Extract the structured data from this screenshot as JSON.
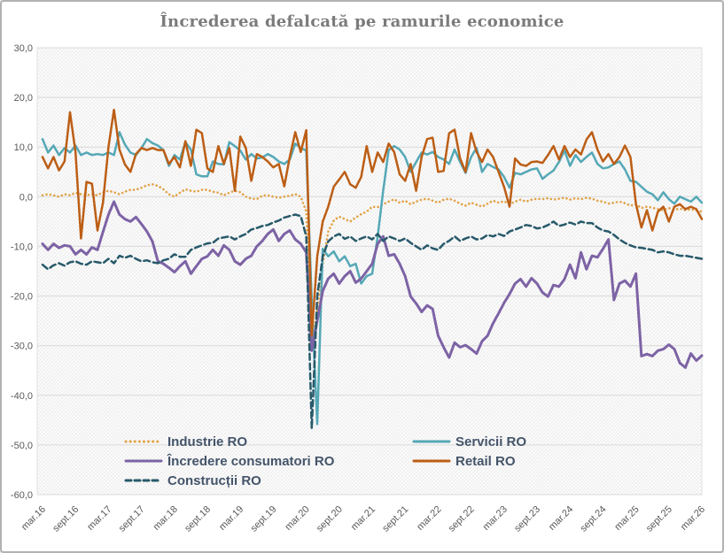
{
  "title": "Încrederea defalcată pe ramurile economice",
  "chart_data": {
    "type": "line",
    "title": "Încrederea defalcată pe ramurile economice",
    "x_unit": "month",
    "x_tick_labels": [
      "mar.16",
      "sept.16",
      "mar.17",
      "sept.17",
      "mar.18",
      "sept.18",
      "mar.19",
      "sept.19",
      "mar.20",
      "sept.20",
      "mar.21",
      "sept.21",
      "mar.22",
      "sept.22",
      "mar.23",
      "sept.23",
      "mar.24",
      "sept.24",
      "mar.25",
      "sept.25",
      "mar.26"
    ],
    "months_between_ticks": 6,
    "ylim": [
      -60,
      30
    ],
    "y_ticks": [
      30,
      20,
      10,
      0,
      -10,
      -20,
      -30,
      -40,
      -50,
      -60
    ],
    "y_tick_labels": [
      "30,0",
      "20,0",
      "10,0",
      "0,0",
      "-10,0",
      "-20,0",
      "-30,0",
      "-40,0",
      "-50,0",
      "-60,0"
    ],
    "grid": "horizontal",
    "plot_background": "diagonal-hatch",
    "legend_position": "bottom-inside",
    "legend_rows": [
      [
        "Industrie RO",
        "Servicii RO"
      ],
      [
        "Încredere consumatori RO",
        "Retail RO"
      ],
      [
        "Construcții RO"
      ]
    ],
    "series": [
      {
        "name": "Industrie RO",
        "color": "#E2A348",
        "style": "dotted",
        "values": [
          0.3,
          0.5,
          0.3,
          0.0,
          0.5,
          0.3,
          0.8,
          0.5,
          0.3,
          0.5,
          0.3,
          0.9,
          1.2,
          0.9,
          0.5,
          1.0,
          1.4,
          1.4,
          1.8,
          2.3,
          2.5,
          2.2,
          1.5,
          0.5,
          0.0,
          0.8,
          1.5,
          1.2,
          1.0,
          1.4,
          1.4,
          1.0,
          0.8,
          0.3,
          0.8,
          1.2,
          0.9,
          0.0,
          -0.4,
          -0.5,
          0.2,
          0.3,
          0.0,
          -0.2,
          0.0,
          0.2,
          0.5,
          0.0,
          -3.0,
          -30.0,
          -23.0,
          -13.5,
          -7.0,
          -4.8,
          -4.0,
          -4.5,
          -5.0,
          -4.2,
          -3.5,
          -3.0,
          -2.0,
          -2.1,
          -1.5,
          -1.0,
          -0.5,
          -1.2,
          -0.8,
          -1.5,
          -1.0,
          -0.6,
          -0.4,
          -0.8,
          -1.2,
          -0.6,
          -0.4,
          -0.8,
          -1.4,
          -1.8,
          -1.2,
          -1.6,
          -2.0,
          -1.4,
          -0.8,
          -1.2,
          -0.9,
          -1.5,
          -1.0,
          -0.6,
          -1.0,
          -0.6,
          -0.4,
          -0.5,
          -0.3,
          -0.6,
          -0.4,
          -0.2,
          -0.6,
          -0.3,
          -0.5,
          -0.2,
          -0.4,
          -0.8,
          -1.0,
          -1.4,
          -1.2,
          -1.0,
          -1.3,
          -1.8,
          -1.5,
          -2.3,
          -2.0,
          -2.2,
          -2.5,
          -2.7,
          -2.3,
          -2.6,
          -2.4,
          -2.7,
          -2.5,
          -2.8,
          -3.0
        ]
      },
      {
        "name": "Servicii RO",
        "color": "#55A8B6",
        "style": "solid",
        "values": [
          11.6,
          8.9,
          10.3,
          8.4,
          9.8,
          8.9,
          10.3,
          8.4,
          8.9,
          8.4,
          8.6,
          8.4,
          8.9,
          8.4,
          13.0,
          10.5,
          8.9,
          8.4,
          9.8,
          11.6,
          10.8,
          10.3,
          9.4,
          6.2,
          8.4,
          7.5,
          11.0,
          9.5,
          4.5,
          4.1,
          4.1,
          7.1,
          6.6,
          6.5,
          11.0,
          10.2,
          9.3,
          7.5,
          8.6,
          7.7,
          7.9,
          8.6,
          8.0,
          7.1,
          6.6,
          7.5,
          10.7,
          9.8,
          9.3,
          -21.0,
          -45.8,
          -10.5,
          -12.0,
          -11.0,
          -13.0,
          -12.0,
          -14.0,
          -13.5,
          -17.5,
          -16.0,
          -15.5,
          -8.0,
          1.2,
          9.4,
          10.2,
          9.5,
          8.0,
          5.0,
          7.0,
          8.9,
          8.5,
          9.0,
          8.0,
          7.5,
          6.6,
          9.5,
          7.0,
          4.8,
          8.0,
          9.8,
          5.0,
          6.6,
          6.0,
          5.5,
          4.0,
          1.8,
          4.8,
          4.5,
          5.0,
          5.5,
          5.7,
          3.6,
          4.5,
          5.3,
          7.0,
          9.3,
          6.2,
          8.4,
          7.0,
          8.0,
          8.9,
          6.6,
          5.7,
          5.9,
          6.6,
          7.1,
          5.5,
          3.2,
          3.0,
          2.0,
          1.0,
          0.5,
          -0.7,
          0.9,
          -0.5,
          -1.4,
          0.0,
          -0.5,
          -1.0,
          0.0,
          -1.2
        ]
      },
      {
        "name": "Încredere consumatori RO",
        "color": "#7D63A5",
        "style": "solid",
        "values": [
          -9.5,
          -10.7,
          -9.5,
          -10.3,
          -9.8,
          -10.0,
          -11.6,
          -10.7,
          -11.6,
          -10.2,
          -10.7,
          -7.1,
          -3.6,
          -1.0,
          -3.6,
          -4.5,
          -5.0,
          -4.1,
          -5.5,
          -7.0,
          -9.0,
          -13.0,
          -13.5,
          -14.3,
          -15.2,
          -14.0,
          -13.0,
          -15.5,
          -14.0,
          -12.5,
          -12.0,
          -10.7,
          -11.9,
          -9.8,
          -10.7,
          -13.0,
          -13.7,
          -12.5,
          -11.9,
          -10.0,
          -8.9,
          -7.5,
          -6.6,
          -8.9,
          -7.5,
          -6.8,
          -8.6,
          -9.5,
          -11.2,
          -31.0,
          -25.0,
          -19.0,
          -16.5,
          -15.5,
          -17.5,
          -16.0,
          -15.0,
          -17.3,
          -16.5,
          -15.0,
          -13.5,
          -9.5,
          -8.0,
          -11.9,
          -11.6,
          -13.5,
          -16.0,
          -20.1,
          -21.5,
          -23.2,
          -21.9,
          -22.6,
          -28.0,
          -30.3,
          -32.4,
          -29.4,
          -30.3,
          -29.9,
          -30.7,
          -31.6,
          -29.1,
          -28.0,
          -25.5,
          -23.5,
          -21.4,
          -19.6,
          -17.5,
          -16.6,
          -18.1,
          -16.4,
          -17.5,
          -19.3,
          -20.1,
          -17.8,
          -18.1,
          -16.6,
          -13.7,
          -16.4,
          -11.2,
          -14.6,
          -11.9,
          -12.2,
          -10.5,
          -8.6,
          -20.8,
          -17.5,
          -16.9,
          -18.1,
          -15.5,
          -32.1,
          -31.7,
          -32.1,
          -31.0,
          -30.7,
          -29.8,
          -30.7,
          -33.5,
          -34.4,
          -31.6,
          -33.0,
          -32.0
        ]
      },
      {
        "name": "Retail RO",
        "color": "#BC5E15",
        "style": "solid",
        "values": [
          8.0,
          5.7,
          8.0,
          5.3,
          7.1,
          17.0,
          9.0,
          -8.4,
          3.0,
          2.6,
          -6.8,
          -1.2,
          10.0,
          17.5,
          9.5,
          6.5,
          5.0,
          8.6,
          9.8,
          9.4,
          9.8,
          9.4,
          9.4,
          6.6,
          8.0,
          5.9,
          11.2,
          6.2,
          13.5,
          12.8,
          5.7,
          5.0,
          10.2,
          6.6,
          9.8,
          1.2,
          12.1,
          9.8,
          3.2,
          8.6,
          8.0,
          7.1,
          5.9,
          6.6,
          2.1,
          8.0,
          13.0,
          9.0,
          13.4,
          -28.0,
          -12.0,
          -5.0,
          -2.0,
          2.0,
          3.5,
          5.0,
          2.5,
          1.8,
          4.0,
          10.2,
          5.0,
          8.9,
          7.0,
          10.7,
          9.0,
          4.5,
          3.2,
          6.6,
          1.2,
          8.0,
          11.6,
          11.9,
          5.0,
          5.2,
          12.8,
          13.5,
          7.7,
          5.0,
          12.8,
          9.0,
          7.0,
          9.5,
          8.0,
          5.0,
          2.0,
          -2.0,
          7.7,
          6.5,
          6.2,
          7.0,
          7.1,
          6.8,
          8.4,
          10.2,
          7.5,
          10.2,
          8.0,
          9.5,
          8.5,
          11.5,
          13.0,
          9.5,
          7.1,
          8.6,
          6.6,
          8.0,
          10.3,
          8.0,
          -1.4,
          -6.2,
          -2.7,
          -6.8,
          -3.0,
          -2.0,
          -5.0,
          -2.0,
          -1.5,
          -2.5,
          -2.0,
          -2.5,
          -4.5
        ]
      },
      {
        "name": "Construcții RO",
        "color": "#27596A",
        "style": "dashed",
        "values": [
          -13.7,
          -14.6,
          -13.8,
          -13.4,
          -13.9,
          -13.2,
          -13.0,
          -13.5,
          -13.7,
          -13.0,
          -13.2,
          -13.4,
          -12.5,
          -13.4,
          -11.9,
          -12.3,
          -11.9,
          -12.5,
          -13.0,
          -12.8,
          -13.2,
          -13.4,
          -12.8,
          -12.5,
          -11.6,
          -12.1,
          -12.1,
          -10.7,
          -10.2,
          -9.8,
          -9.4,
          -9.3,
          -8.4,
          -8.2,
          -8.0,
          -8.6,
          -8.0,
          -7.5,
          -6.6,
          -6.3,
          -5.9,
          -5.7,
          -5.2,
          -4.8,
          -4.2,
          -3.9,
          -3.6,
          -3.9,
          -8.0,
          -46.7,
          -20.0,
          -12.0,
          -9.0,
          -8.0,
          -7.5,
          -8.5,
          -8.0,
          -8.9,
          -8.4,
          -8.0,
          -8.6,
          -7.5,
          -8.9,
          -8.0,
          -8.4,
          -8.9,
          -8.4,
          -9.3,
          -10.0,
          -10.7,
          -9.8,
          -10.4,
          -10.7,
          -9.5,
          -8.9,
          -8.0,
          -8.9,
          -8.4,
          -8.0,
          -8.6,
          -8.4,
          -7.7,
          -8.0,
          -7.5,
          -7.9,
          -7.0,
          -6.6,
          -6.2,
          -5.7,
          -5.9,
          -6.4,
          -6.2,
          -5.7,
          -5.0,
          -5.9,
          -5.6,
          -5.2,
          -5.6,
          -5.0,
          -5.3,
          -5.3,
          -6.2,
          -6.8,
          -7.0,
          -7.7,
          -8.6,
          -9.3,
          -9.8,
          -10.2,
          -10.3,
          -10.5,
          -10.7,
          -11.2,
          -11.0,
          -11.2,
          -11.6,
          -11.9,
          -11.9,
          -12.1,
          -12.3,
          -12.5
        ]
      }
    ]
  }
}
